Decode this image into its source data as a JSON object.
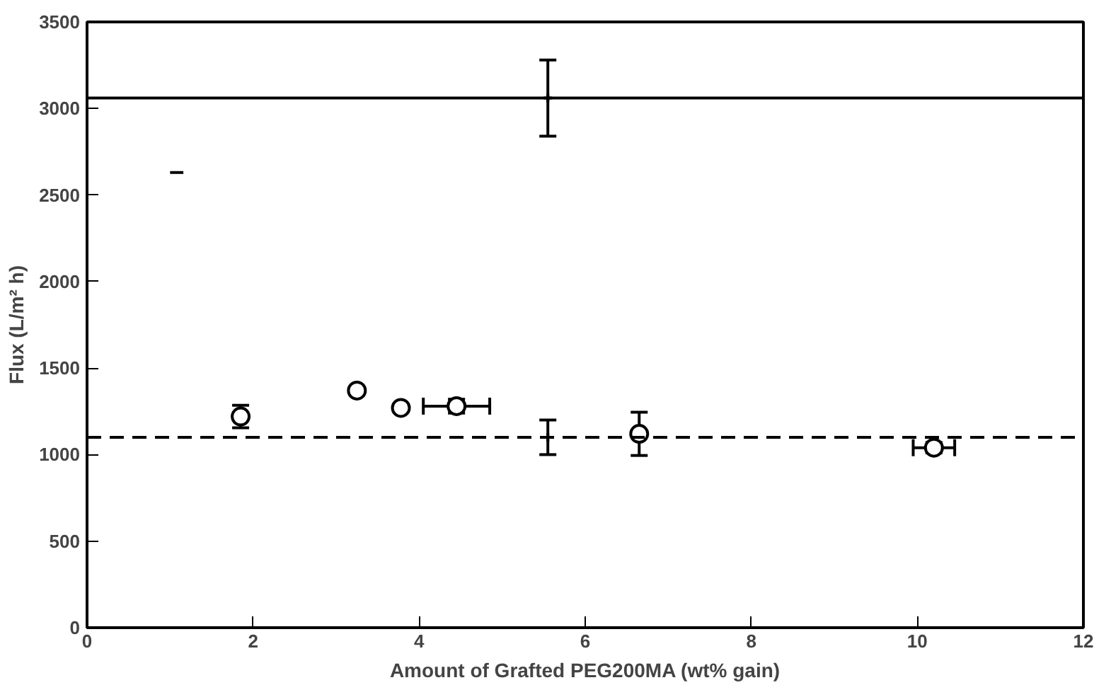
{
  "chart_data": {
    "type": "scatter",
    "xlabel": "Amount of Grafted PEG200MA (wt% gain)",
    "ylabel": "Flux (L/m² h)",
    "xlim": [
      0,
      12
    ],
    "xticks": [
      0,
      2,
      4,
      6,
      8,
      10,
      12
    ],
    "ylim": [
      0,
      3500
    ],
    "yticks": [
      0,
      500,
      1000,
      1500,
      2000,
      2500,
      3000,
      3500
    ],
    "grid": false,
    "series": [
      {
        "color": "#000000",
        "marker": "circle",
        "x": [
          1.85,
          3.25,
          3.78,
          4.45,
          6.65,
          10.2
        ],
        "values": [
          1220,
          1370,
          1270,
          1280,
          1120,
          1040
        ],
        "errors": [
          65,
          null,
          null,
          40,
          125,
          30
        ],
        "xerrors": [
          null,
          null,
          null,
          0.4,
          null,
          0.25
        ]
      },
      {
        "color": "#000000",
        "marker": "cross",
        "x": [
          5.55,
          5.55
        ],
        "values": [
          1100,
          3060
        ],
        "errors": [
          100,
          220
        ]
      },
      {
        "type": "line",
        "color": "#000000",
        "marker": "none",
        "x": [
          1.0,
          1.16
        ],
        "values": [
          2630,
          2630
        ]
      }
    ],
    "ref_lines": [
      {
        "axis": "y",
        "value": 3060,
        "label": null,
        "line_style": "solid",
        "color": "#000000"
      },
      {
        "axis": "y",
        "value": 1100,
        "label": null,
        "line_style": "dashed",
        "color": "#000000"
      }
    ]
  }
}
